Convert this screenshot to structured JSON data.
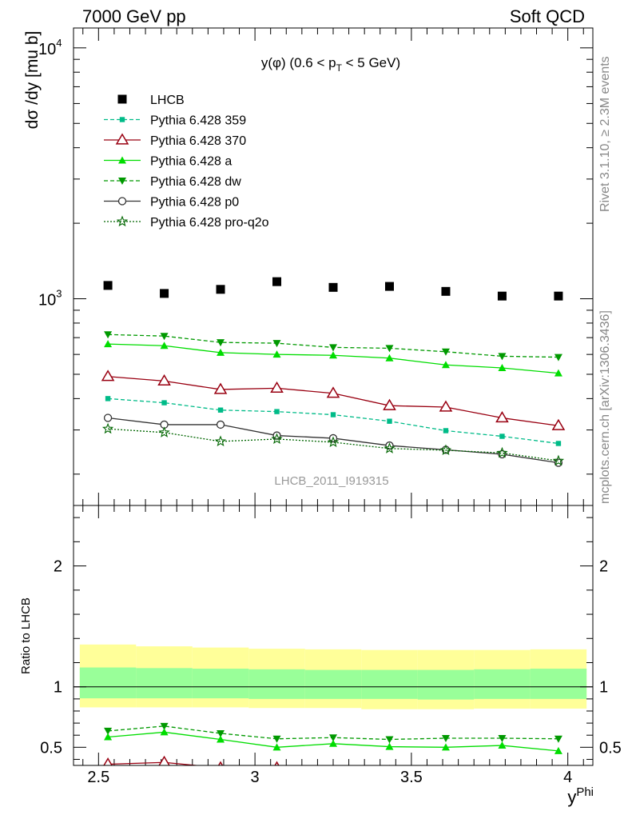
{
  "header": {
    "left": "7000 GeV pp",
    "right": "Soft QCD"
  },
  "side_labels": {
    "rivet": "Rivet 3.1.10, ≥ 2.3M events",
    "mcplots": "mcplots.cern.ch [arXiv:1306.3436]"
  },
  "colors": {
    "lhcb": "#000000",
    "p359": "#00bb88",
    "p370": "#990011",
    "pa": "#00dd00",
    "pdw": "#009900",
    "pp0": "#333333",
    "pq2o": "#006600",
    "band_inner": "#99ff99",
    "band_outer": "#ffff99"
  },
  "chart_data": [
    {
      "type": "scatter",
      "title": "y(φ) (0.6 < pT < 5 GeV)",
      "watermark": "LHCB_2011_I919315",
      "ylabel": "dσ /dy [mu b]",
      "yscale": "log",
      "ylim": [
        150,
        12000
      ],
      "xlim": [
        2.42,
        4.08
      ],
      "y_ticks": [
        {
          "value": 1000,
          "label": "10",
          "exp": "3"
        },
        {
          "value": 10000,
          "label": "10",
          "exp": "4"
        }
      ],
      "x": [
        2.53,
        2.71,
        2.89,
        3.07,
        3.25,
        3.43,
        3.61,
        3.79,
        3.97
      ],
      "series": [
        {
          "name": "LHCB",
          "key": "lhcb",
          "marker": "square",
          "line": "none",
          "values": [
            1130,
            1050,
            1090,
            1170,
            1110,
            1120,
            1070,
            1025,
            1025
          ]
        },
        {
          "name": "Pythia 6.428 359",
          "key": "p359",
          "marker": "smallsquare",
          "line": "dashed",
          "values": [
            400,
            385,
            360,
            355,
            345,
            325,
            298,
            283,
            265
          ]
        },
        {
          "name": "Pythia 6.428 370",
          "key": "p370",
          "marker": "open-triangle",
          "line": "solid",
          "values": [
            490,
            470,
            435,
            440,
            420,
            375,
            370,
            335,
            312
          ]
        },
        {
          "name": "Pythia 6.428 a",
          "key": "pa",
          "marker": "triangle-up",
          "line": "solid",
          "values": [
            660,
            650,
            610,
            600,
            595,
            580,
            545,
            530,
            505
          ]
        },
        {
          "name": "Pythia 6.428 dw",
          "key": "pdw",
          "marker": "triangle-down",
          "line": "dashed",
          "values": [
            720,
            710,
            670,
            665,
            640,
            635,
            615,
            590,
            585
          ]
        },
        {
          "name": "Pythia 6.428 p0",
          "key": "pp0",
          "marker": "open-circle",
          "line": "solid",
          "values": [
            335,
            315,
            315,
            285,
            278,
            260,
            250,
            240,
            222
          ]
        },
        {
          "name": "Pythia 6.428 pro-q2o",
          "key": "pq2o",
          "marker": "open-star",
          "line": "dotted",
          "values": [
            303,
            293,
            270,
            276,
            268,
            253,
            249,
            243,
            226
          ]
        }
      ]
    },
    {
      "type": "line",
      "ylabel": "Ratio to LHCB",
      "xlabel": "y^Phi",
      "xlim": [
        2.42,
        4.08
      ],
      "ylim": [
        0.35,
        2.5
      ],
      "x_ticks": [
        2.5,
        3,
        3.5,
        4
      ],
      "x_tick_labels": [
        "2.5",
        "3",
        "3.5",
        "4"
      ],
      "y_ticks": [
        0.5,
        1,
        2
      ],
      "y_tick_labels": [
        "0.5",
        "1",
        "2"
      ],
      "band_edges": [
        2.44,
        2.62,
        2.8,
        2.98,
        3.16,
        3.34,
        3.52,
        3.7,
        3.88,
        4.06
      ],
      "band_inner": [
        [
          0.905,
          1.16
        ],
        [
          0.905,
          1.155
        ],
        [
          0.905,
          1.15
        ],
        [
          0.9,
          1.145
        ],
        [
          0.9,
          1.14
        ],
        [
          0.9,
          1.14
        ],
        [
          0.895,
          1.14
        ],
        [
          0.9,
          1.145
        ],
        [
          0.9,
          1.15
        ]
      ],
      "band_outer": [
        [
          0.83,
          1.35
        ],
        [
          0.83,
          1.335
        ],
        [
          0.83,
          1.325
        ],
        [
          0.825,
          1.315
        ],
        [
          0.825,
          1.31
        ],
        [
          0.815,
          1.305
        ],
        [
          0.815,
          1.305
        ],
        [
          0.82,
          1.305
        ],
        [
          0.82,
          1.31
        ]
      ],
      "x": [
        2.53,
        2.71,
        2.89,
        3.07,
        3.25,
        3.43,
        3.61,
        3.79,
        3.97
      ],
      "series": [
        {
          "key": "pdw",
          "marker": "triangle-down",
          "line": "dashed",
          "values": [
            0.635,
            0.675,
            0.615,
            0.57,
            0.58,
            0.565,
            0.575,
            0.575,
            0.57
          ]
        },
        {
          "key": "pa",
          "marker": "triangle-up",
          "line": "solid",
          "values": [
            0.585,
            0.625,
            0.565,
            0.5,
            0.53,
            0.505,
            0.5,
            0.515,
            0.47
          ]
        },
        {
          "key": "p370",
          "marker": "open-triangle",
          "line": "solid",
          "values": [
            0.36,
            0.375,
            0.33,
            0.33,
            0.3,
            0.3,
            0.3,
            0.3,
            0.3
          ]
        }
      ]
    }
  ]
}
